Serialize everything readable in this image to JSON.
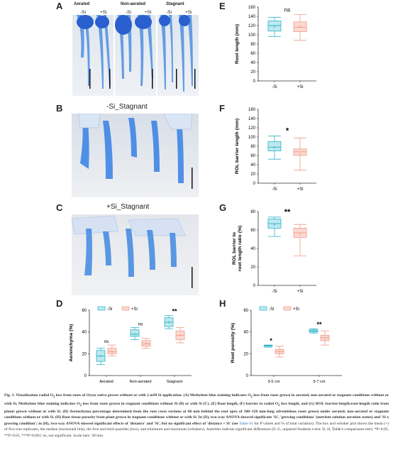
{
  "panels": {
    "A": {
      "letter": "A",
      "conditions": [
        "Aerated",
        "Non-aerated",
        "Stagnant"
      ],
      "treatments": [
        "-Si",
        "+Si",
        "-Si",
        "+Si",
        "-Si",
        "+Si"
      ]
    },
    "B": {
      "letter": "B",
      "title": "-Si_Stagnant"
    },
    "C": {
      "letter": "C",
      "title": "+Si_Stagnant"
    }
  },
  "chart_data": [
    {
      "panel": "E",
      "type": "box",
      "ylabel": "Root length (mm)",
      "ylim": [
        0,
        160
      ],
      "yticks": [
        0,
        20,
        40,
        60,
        80,
        100,
        120,
        140,
        160
      ],
      "categories": [
        "-Si",
        "+Si"
      ],
      "significance": "ns",
      "boxes": [
        {
          "min": 96,
          "q1": 108,
          "median": 120,
          "q3": 130,
          "max": 138,
          "mean": 118
        },
        {
          "min": 88,
          "q1": 107,
          "median": 116,
          "q3": 128,
          "max": 144,
          "mean": 118
        }
      ]
    },
    {
      "panel": "F",
      "type": "box",
      "ylabel": "ROL barrier length (mm)",
      "ylim": [
        0,
        160
      ],
      "yticks": [
        0,
        20,
        40,
        60,
        80,
        100,
        120,
        140,
        160
      ],
      "categories": [
        "-Si",
        "+Si"
      ],
      "significance": "*",
      "boxes": [
        {
          "min": 52,
          "q1": 70,
          "median": 78,
          "q3": 90,
          "max": 102,
          "mean": 78
        },
        {
          "min": 28,
          "q1": 60,
          "median": 68,
          "q3": 74,
          "max": 98,
          "mean": 65
        }
      ]
    },
    {
      "panel": "G",
      "type": "box",
      "ylabel": "ROL barrier to\nroot length ratio (%)",
      "ylim": [
        0,
        80
      ],
      "yticks": [
        0,
        20,
        40,
        60,
        80
      ],
      "categories": [
        "-Si",
        "+Si"
      ],
      "significance": "**",
      "boxes": [
        {
          "min": 53,
          "q1": 62,
          "median": 67,
          "q3": 72,
          "max": 74,
          "mean": 66
        },
        {
          "min": 32,
          "q1": 52,
          "median": 57,
          "q3": 62,
          "max": 66,
          "mean": 56
        }
      ]
    },
    {
      "panel": "D",
      "type": "box",
      "ylabel": "Aerenchyma (%)",
      "ylim": [
        0,
        60
      ],
      "yticks": [
        0,
        20,
        40,
        60
      ],
      "categories": [
        "Aerated",
        "Non-aerated",
        "Stagnant"
      ],
      "legend": [
        "-Si",
        "+Si"
      ],
      "significance": [
        "ns",
        "ns",
        "**"
      ],
      "series": [
        {
          "name": "-Si",
          "boxes": [
            {
              "min": 10,
              "q1": 13,
              "median": 18,
              "q3": 23,
              "max": 25,
              "mean": 18
            },
            {
              "min": 33,
              "q1": 36,
              "median": 38,
              "q3": 42,
              "max": 44,
              "mean": 38
            },
            {
              "min": 43,
              "q1": 45,
              "median": 49,
              "q3": 53,
              "max": 55,
              "mean": 49
            }
          ]
        },
        {
          "name": "+Si",
          "boxes": [
            {
              "min": 18,
              "q1": 20,
              "median": 22,
              "q3": 25,
              "max": 28,
              "mean": 22
            },
            {
              "min": 25,
              "q1": 27,
              "median": 29,
              "q3": 32,
              "max": 34,
              "mean": 30
            },
            {
              "min": 30,
              "q1": 33,
              "median": 37,
              "q3": 41,
              "max": 44,
              "mean": 37
            }
          ]
        }
      ]
    },
    {
      "panel": "H",
      "type": "box",
      "ylabel": "Root porosity (%)",
      "ylim": [
        0,
        60
      ],
      "yticks": [
        0,
        20,
        40,
        60
      ],
      "categories": [
        "3-5 cm",
        "5-7 cm"
      ],
      "legend": [
        "-Si",
        "+Si"
      ],
      "significance": [
        "*",
        "**"
      ],
      "series": [
        {
          "name": "-Si",
          "boxes": [
            {
              "min": 26,
              "q1": 27,
              "median": 27,
              "q3": 27.5,
              "max": 28,
              "mean": 27
            },
            {
              "min": 39,
              "q1": 40,
              "median": 41,
              "q3": 42,
              "max": 43,
              "mean": 41
            }
          ]
        },
        {
          "name": "+Si",
          "boxes": [
            {
              "min": 17,
              "q1": 20,
              "median": 22,
              "q3": 24,
              "max": 27,
              "mean": 22
            },
            {
              "min": 28,
              "q1": 32,
              "median": 35,
              "q3": 37,
              "max": 41,
              "mean": 34
            }
          ]
        }
      ]
    }
  ],
  "colors": {
    "minus": "#2bb3c8",
    "minus_fill": "#bde8ef",
    "plus": "#f09a8a",
    "plus_fill": "#fbd9d2",
    "axis": "#333333"
  },
  "caption": {
    "p1": "Fig. 3. Visualization radial O",
    "p2": "2",
    "p3": " loss from roots of ",
    "p4": "Oryza sativa",
    "p5": " grown without or with 2 mM Si application. (A) Methylene blue staining indicates O",
    "p6": "2",
    "p7": " loss from roots grown in aerated, non-aerated or stagnant conditions without or with Si. Methylene blue staining indicates O",
    "p8": "2",
    "p9": " loss from roots grown in stagnant conditions without Si (B) or with Si (C). (E) Root length, (F) barrier to radial O",
    "p10": "2",
    "p11": " loss length, and (G) ROL-barrier-length:root-length ratio from plants grown without or with Si. (D) Aerenchyma percentage determined from the root cross sections at 60 mm behind the root apex of 100–120 mm-long adventitious roots grown under aerated, non-aerated or stagnant conditions without or with Si. (H) Root tissue porosity from plant grown in stagnant conditions without or with Si. In (D), two-way ANOVA showed significant 'Si', 'growing conditions' (nutrient solution aeration status) and 'Si x growing condition'; in (H), two-way ANOVA showed significant effects of 'distance' and 'Si', but no significant effect of 'distance × Si' (see ",
    "p12": "Table S1",
    "p13": " for P values and % of total variation). The box and whisker plot shows the mean (+) of five true replicates, the median (horizontal line), the first and third quartiles (box), and minimum and maximum (whiskers). Asterisks indicate significant differences (E–G, unpaired Students t-test; D, H, Šidák's comparisons test): *P<0.05, **P<0.01, ***P<0.001; ns, not significant. Scale bars: 30 mm."
  }
}
